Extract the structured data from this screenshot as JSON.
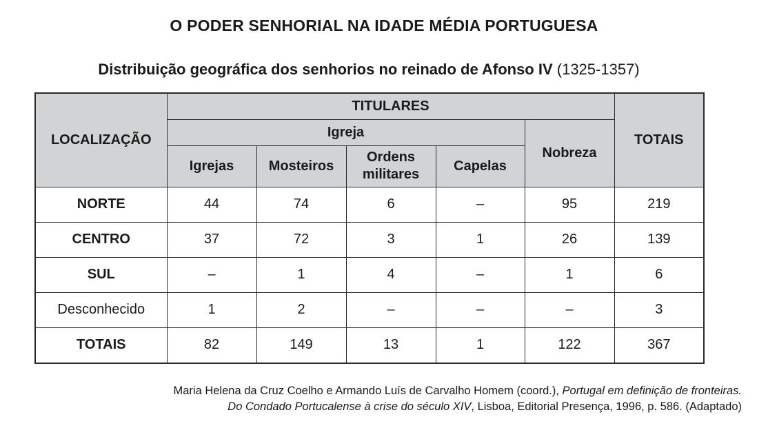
{
  "title": "O PODER SENHORIAL NA IDADE MÉDIA PORTUGUESA",
  "subtitle": {
    "bold": "Distribuição geográfica dos senhorios no reinado de Afonso IV",
    "regular": " (1325-1357)"
  },
  "table": {
    "header": {
      "localizacao": "LOCALIZAÇÃO",
      "titulares": "TITULARES",
      "igreja": "Igreja",
      "igrejas": "Igrejas",
      "mosteiros": "Mosteiros",
      "ordens_militares": "Ordens militares",
      "capelas": "Capelas",
      "nobreza": "Nobreza",
      "totais": "TOTAIS"
    },
    "rows": [
      {
        "label": "NORTE",
        "bold": true,
        "igrejas": "44",
        "mosteiros": "74",
        "ordens": "6",
        "capelas": "–",
        "nobreza": "95",
        "totais": "219"
      },
      {
        "label": "CENTRO",
        "bold": true,
        "igrejas": "37",
        "mosteiros": "72",
        "ordens": "3",
        "capelas": "1",
        "nobreza": "26",
        "totais": "139"
      },
      {
        "label": "SUL",
        "bold": true,
        "igrejas": "–",
        "mosteiros": "1",
        "ordens": "4",
        "capelas": "–",
        "nobreza": "1",
        "totais": "6"
      },
      {
        "label": "Desconhecido",
        "bold": false,
        "igrejas": "1",
        "mosteiros": "2",
        "ordens": "–",
        "capelas": "–",
        "nobreza": "–",
        "totais": "3"
      },
      {
        "label": "TOTAIS",
        "bold": true,
        "igrejas": "82",
        "mosteiros": "149",
        "ordens": "13",
        "capelas": "1",
        "nobreza": "122",
        "totais": "367"
      }
    ]
  },
  "source": {
    "line1_regular": "Maria Helena da Cruz Coelho e Armando Luís de Carvalho Homem (coord.), ",
    "line1_italic": "Portugal em definição de fronteiras.",
    "line2_italic": "Do Condado Portucalense à crise do século XIV",
    "line2_regular": ", Lisboa, Editorial Presença, 1996, p. 586. (Adaptado)"
  }
}
